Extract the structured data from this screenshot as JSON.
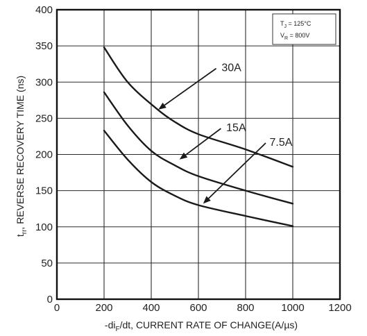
{
  "chart_data": {
    "type": "line",
    "xlabel": "-di /dt, CURRENT RATE OF CHANGE(A/µs)",
    "xlabel_parts": {
      "pre": "-di",
      "sub": "F",
      "post": "/dt, CURRENT RATE OF CHANGE(A/µs)"
    },
    "ylabel_parts": {
      "pre": "t",
      "sub": "rr",
      "post": ", REVERSE RECOVERY TIME (ns)"
    },
    "xlim": [
      0,
      1200
    ],
    "ylim": [
      0,
      400
    ],
    "x_ticks": [
      0,
      200,
      400,
      600,
      800,
      1000,
      1200
    ],
    "y_ticks": [
      0,
      50,
      100,
      150,
      200,
      250,
      300,
      350,
      400
    ],
    "grid": true,
    "series": [
      {
        "name": "30A",
        "x": [
          200,
          300,
          420,
          500,
          600,
          800,
          1000
        ],
        "y": [
          348,
          300,
          264,
          245,
          228,
          207,
          183
        ]
      },
      {
        "name": "15A",
        "x": [
          200,
          300,
          400,
          500,
          600,
          800,
          1000
        ],
        "y": [
          286,
          240,
          205,
          185,
          170,
          150,
          132
        ]
      },
      {
        "name": "7.5A",
        "x": [
          200,
          300,
          400,
          500,
          600,
          800,
          1000
        ],
        "y": [
          233,
          193,
          162,
          143,
          130,
          115,
          101
        ]
      }
    ],
    "annotations": [
      {
        "text": "30A",
        "series": "30A",
        "x": 740,
        "y": 315,
        "point_x": 430,
        "point_y": 262
      },
      {
        "text": "15A",
        "series": "15A",
        "x": 760,
        "y": 232,
        "point_x": 520,
        "point_y": 193
      },
      {
        "text": "7.5A",
        "series": "7.5A",
        "x": 950,
        "y": 212,
        "point_x": 620,
        "point_y": 132
      }
    ],
    "conditions": {
      "tj": {
        "pre": "T",
        "sub": "J",
        "post": " = 125°C"
      },
      "vr": {
        "pre": "V",
        "sub": "R",
        "post": " = 800V"
      }
    }
  }
}
